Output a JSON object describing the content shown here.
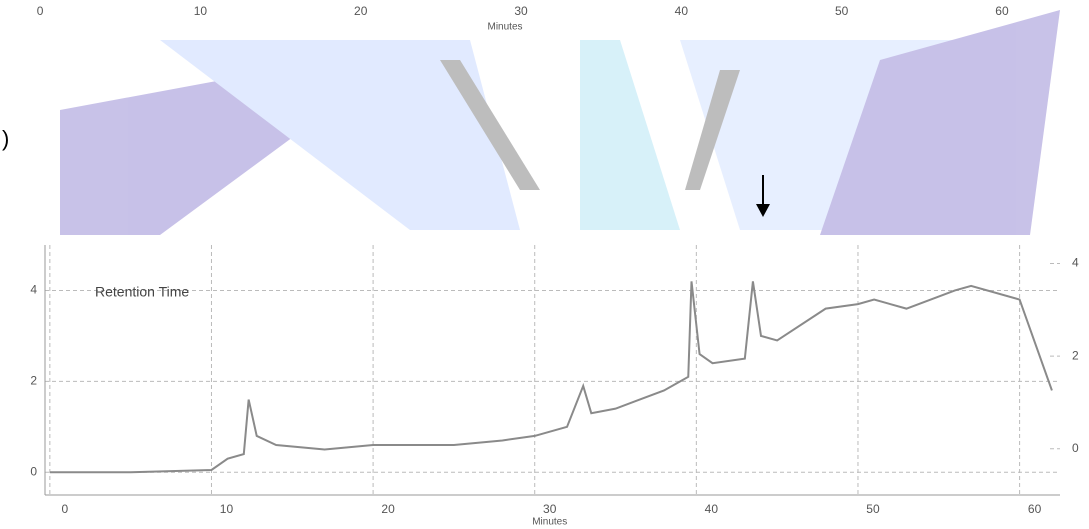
{
  "fragment": ")",
  "chart_data": [
    {
      "type": "axis",
      "xlabel": "Minutes",
      "xlim": [
        -2.5,
        60.5
      ],
      "xticks": [
        0,
        10,
        20,
        30,
        40,
        50,
        60
      ]
    },
    {
      "type": "line",
      "annotation": "Retention Time",
      "xlabel": "Minutes",
      "xlim": [
        -0.3,
        62.5
      ],
      "xticks": [
        0,
        10,
        20,
        30,
        40,
        50,
        60
      ],
      "ylim": [
        -0.5,
        5
      ],
      "yticks": [
        0,
        2,
        4
      ],
      "y2lim": [
        -1,
        4.4
      ],
      "y2ticks": [
        0,
        2,
        4
      ],
      "grid": true,
      "x": [
        0,
        5,
        10,
        11,
        12,
        12.3,
        12.8,
        14,
        17,
        20,
        25,
        28,
        30,
        32,
        33,
        33.5,
        35,
        38,
        39.5,
        39.7,
        40.2,
        41,
        43,
        43.5,
        44,
        45,
        48,
        50,
        51,
        53,
        56,
        57,
        60,
        62
      ],
      "series": [
        {
          "color": "#8a8a8a",
          "values": [
            0,
            0,
            0.05,
            0.3,
            0.4,
            1.6,
            0.8,
            0.6,
            0.5,
            0.6,
            0.6,
            0.7,
            0.8,
            1.0,
            1.9,
            1.3,
            1.4,
            1.8,
            2.1,
            4.2,
            2.6,
            2.4,
            2.5,
            4.2,
            3.0,
            2.9,
            3.6,
            3.7,
            3.8,
            3.6,
            4.0,
            4.1,
            3.8,
            1.8
          ]
        }
      ]
    }
  ]
}
